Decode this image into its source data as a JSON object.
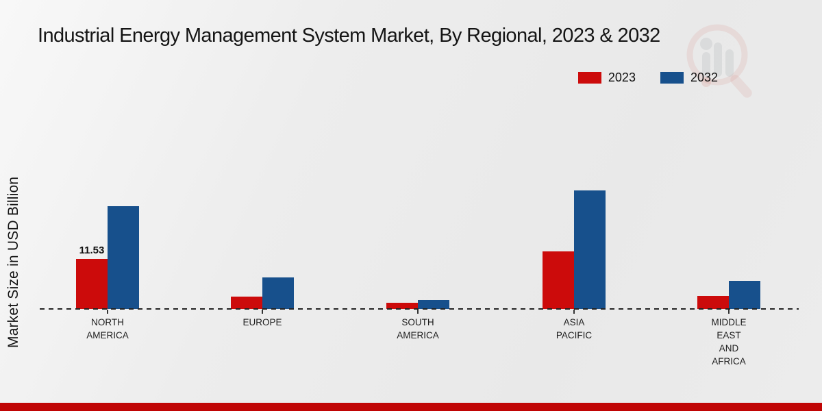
{
  "title": "Industrial Energy Management System Market, By Regional, 2023 & 2032",
  "y_axis_label": "Market Size in USD Billion",
  "colors": {
    "series_2023": "#cc0b0b",
    "series_2032": "#17508c",
    "footer_bar": "#c00505",
    "baseline": "#232323",
    "watermark_red": "#c0392b",
    "watermark_grey": "#9aa0a6"
  },
  "legend": {
    "position": "top-right",
    "items": [
      {
        "label": "2023",
        "color": "#cc0b0b"
      },
      {
        "label": "2032",
        "color": "#17508c"
      }
    ]
  },
  "watermark_icon": "magnifier-bar-chart-logo",
  "chart_data": {
    "type": "bar",
    "title": "Industrial Energy Management System Market, By Regional, 2023 & 2032",
    "xlabel": "",
    "ylabel": "Market Size in USD Billion",
    "ylim": [
      0,
      30
    ],
    "grid": false,
    "legend_position": "top-right",
    "baseline_style": "dashed",
    "categories": [
      "NORTH AMERICA",
      "EUROPE",
      "SOUTH AMERICA",
      "ASIA PACIFIC",
      "MIDDLE EAST AND AFRICA"
    ],
    "category_label_lines": [
      [
        "NORTH",
        "AMERICA"
      ],
      [
        "EUROPE"
      ],
      [
        "SOUTH",
        "AMERICA"
      ],
      [
        "ASIA",
        "PACIFIC"
      ],
      [
        "MIDDLE",
        "EAST",
        "AND",
        "AFRICA"
      ]
    ],
    "series": [
      {
        "name": "2023",
        "color": "#cc0b0b",
        "values": [
          11.53,
          2.9,
          1.35,
          13.3,
          3.0
        ]
      },
      {
        "name": "2032",
        "color": "#17508c",
        "values": [
          23.7,
          7.3,
          2.1,
          27.4,
          6.5
        ]
      }
    ],
    "annotations": [
      {
        "series": "2023",
        "category_index": 0,
        "text": "11.53"
      }
    ]
  }
}
